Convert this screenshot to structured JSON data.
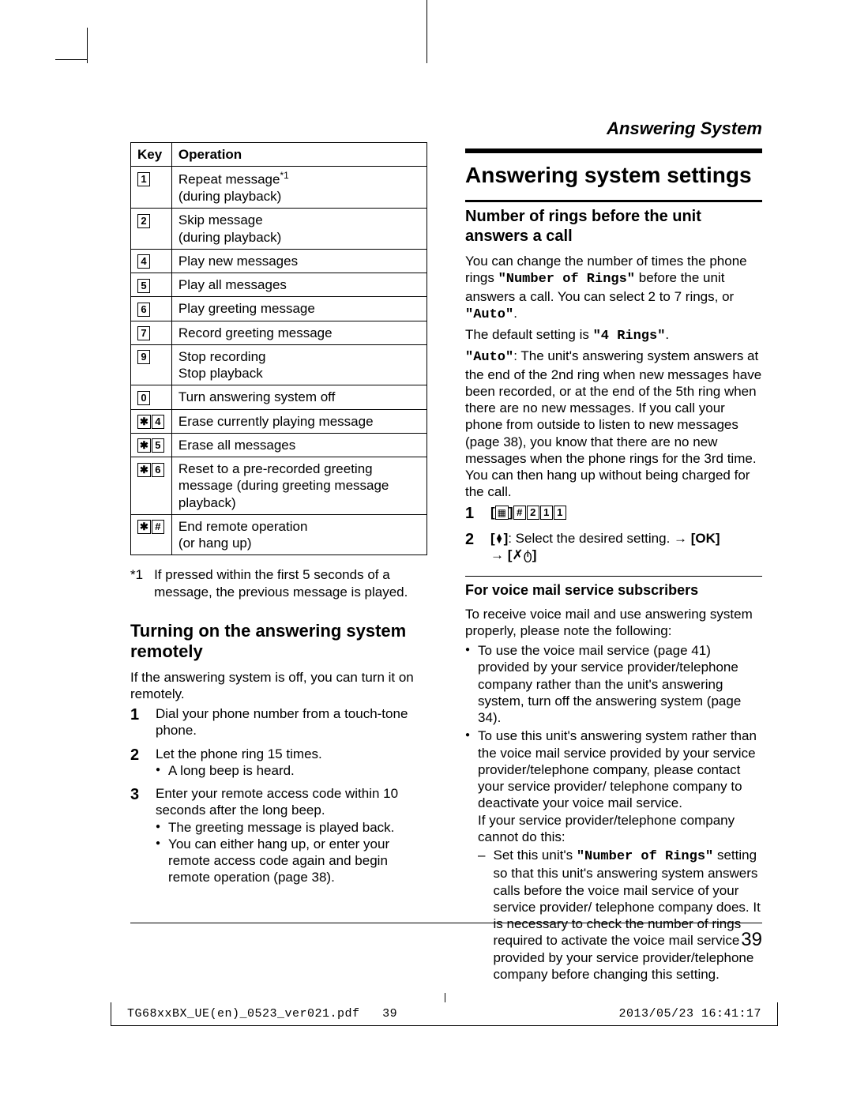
{
  "header": {
    "section": "Answering System"
  },
  "table": {
    "headers": {
      "key": "Key",
      "operation": "Operation"
    },
    "rows": [
      {
        "keys": [
          "1"
        ],
        "op": "Repeat message\n(during playback)",
        "sup": "*1"
      },
      {
        "keys": [
          "2"
        ],
        "op": "Skip message\n(during playback)"
      },
      {
        "keys": [
          "4"
        ],
        "op": "Play new messages"
      },
      {
        "keys": [
          "5"
        ],
        "op": "Play all messages"
      },
      {
        "keys": [
          "6"
        ],
        "op": "Play greeting message"
      },
      {
        "keys": [
          "7"
        ],
        "op": "Record greeting message"
      },
      {
        "keys": [
          "9"
        ],
        "op": "Stop recording\nStop playback"
      },
      {
        "keys": [
          "0"
        ],
        "op": "Turn answering system off"
      },
      {
        "keys": [
          "✱",
          "4"
        ],
        "op": "Erase currently playing message"
      },
      {
        "keys": [
          "✱",
          "5"
        ],
        "op": "Erase all messages"
      },
      {
        "keys": [
          "✱",
          "6"
        ],
        "op": "Reset to a pre-recorded greeting message (during greeting message playback)"
      },
      {
        "keys": [
          "✱",
          "#"
        ],
        "op": "End remote operation\n(or hang up)"
      }
    ]
  },
  "footnote": {
    "mark": "*1",
    "text": "If pressed within the first 5 seconds of a message, the previous message is played."
  },
  "left": {
    "h2": "Turning on the answering system remotely",
    "intro": "If the answering system is off, you can turn it on remotely.",
    "step1": "Dial your phone number from a touch-tone phone.",
    "step2": "Let the phone ring 15 times.",
    "step2_b1": "A long beep is heard.",
    "step3": "Enter your remote access code within 10 seconds after the long beep.",
    "step3_b1": "The greeting message is played back.",
    "step3_b2": "You can either hang up, or enter your remote access code again and begin remote operation (page 38)."
  },
  "right": {
    "h1": "Answering system settings",
    "h3": "Number of rings before the unit answers a call",
    "p1a": "You can change the number of times the phone rings ",
    "p1_code1": "\"Number of Rings\"",
    "p1b": " before the unit answers a call. You can select 2 to 7 rings, or ",
    "p1_code2": "\"Auto\"",
    "p1c": ".",
    "p2a": "The default setting is ",
    "p2_code": "\"4 Rings\"",
    "p2b": ".",
    "p3_code": "\"Auto\"",
    "p3": ": The unit's answering system answers at the end of the 2nd ring when new messages have been recorded, or at the end of the 5th ring when there are no new messages. If you call your phone from outside to listen to new messages (page 38), you know that there are no new messages when the phone rings for the 3rd time. You can then hang up without being charged for the call.",
    "step1_seq": [
      "#",
      "2",
      "1",
      "1"
    ],
    "step2a": ": Select the desired setting. ",
    "step2_ok": "[OK]",
    "h4": "For voice mail service subscribers",
    "p4": "To receive voice mail and use answering system properly, please note the following:",
    "b1": "To use the voice mail service (page 41) provided by your service provider/telephone company rather than the unit's answering system, turn off the answering system (page 34).",
    "b2": "To use this unit's answering system rather than the voice mail service provided by your service provider/telephone company, please contact your service provider/ telephone company to deactivate your voice mail service.",
    "b2_after": "If your service provider/telephone company cannot do this:",
    "dash1a": "Set this unit's ",
    "dash1_code": "\"Number of Rings\"",
    "dash1b": " setting so that this unit's answering system answers calls before the voice mail service of your service provider/ telephone company does. It is necessary to check the number of rings required to activate the voice mail service provided by your service provider/telephone company before changing this setting."
  },
  "pagenum": "39",
  "footer": {
    "left": "TG68xxBX_UE(en)_0523_ver021.pdf",
    "mid": "39",
    "right": "2013/05/23   16:41:17"
  }
}
